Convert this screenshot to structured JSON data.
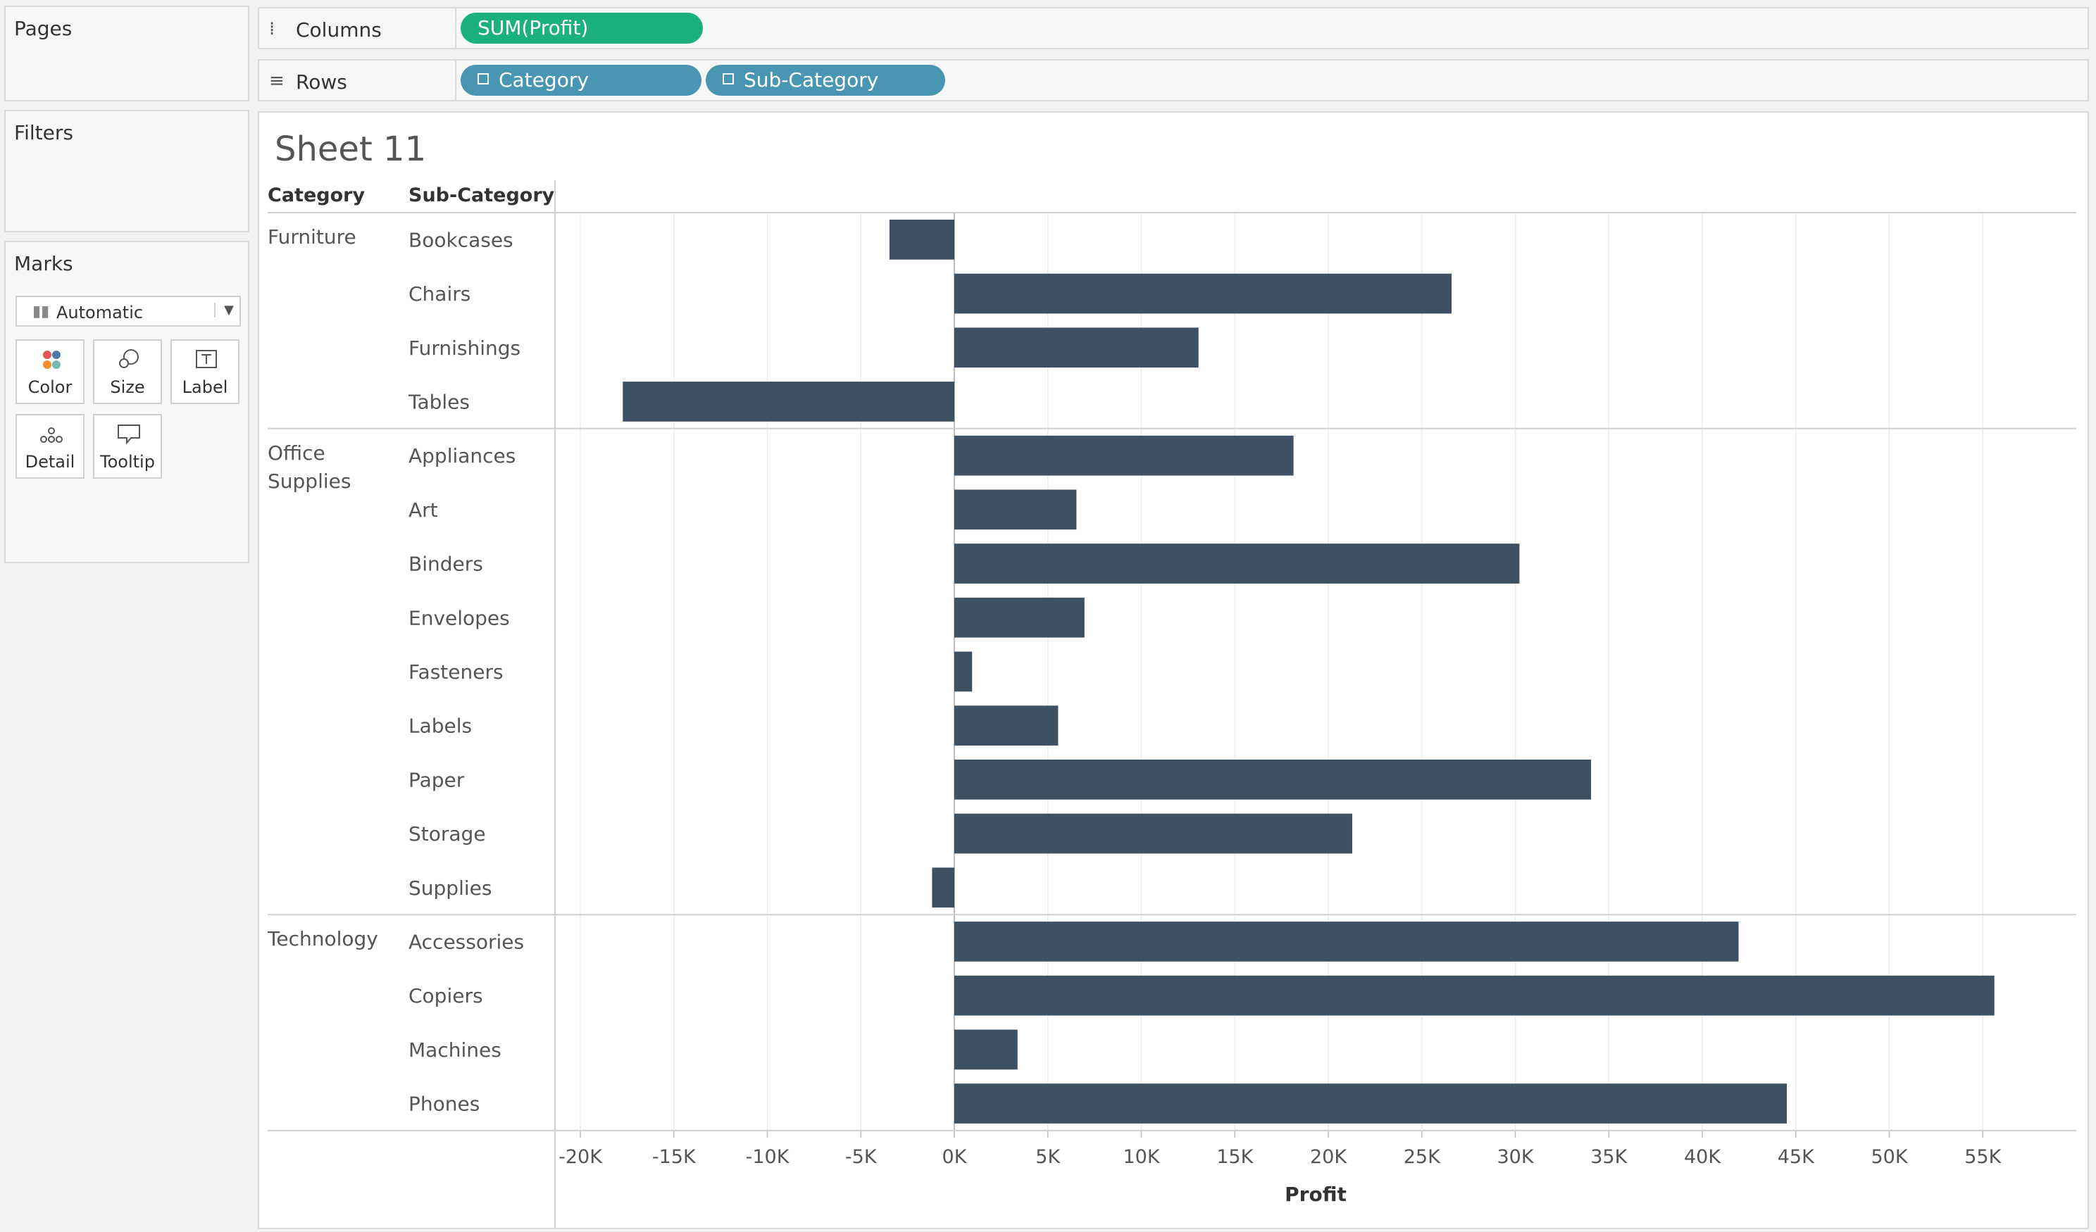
{
  "cards": {
    "pages": "Pages",
    "filters": "Filters",
    "marks": "Marks",
    "mark_type": "Automatic",
    "buttons": {
      "color": "Color",
      "size": "Size",
      "label": "Label",
      "detail": "Detail",
      "tooltip": "Tooltip"
    }
  },
  "shelves": {
    "columns": {
      "label": "Columns",
      "pills": [
        "SUM(Profit)"
      ]
    },
    "rows": {
      "label": "Rows",
      "pills": [
        "Category",
        "Sub-Category"
      ]
    }
  },
  "sheet": {
    "title": "Sheet 11",
    "header_category": "Category",
    "header_subcategory": "Sub-Category"
  },
  "colors": {
    "bar": "#3d5163",
    "columns_pill": "#1bb080",
    "rows_pill": "#4996b2"
  },
  "chart_data": {
    "type": "bar",
    "orientation": "horizontal",
    "xlabel": "Profit",
    "xlim": [
      -21500,
      60000
    ],
    "xticks": [
      -20000,
      -15000,
      -10000,
      -5000,
      0,
      5000,
      10000,
      15000,
      20000,
      25000,
      30000,
      35000,
      40000,
      45000,
      50000,
      55000
    ],
    "xtick_labels": [
      "-20K",
      "-15K",
      "-10K",
      "-5K",
      "0K",
      "5K",
      "10K",
      "15K",
      "20K",
      "25K",
      "30K",
      "35K",
      "40K",
      "45K",
      "50K",
      "55K"
    ],
    "grid": "vertical",
    "groups": [
      {
        "category": "Furniture",
        "rows": [
          {
            "sub": "Bookcases",
            "value": -3470
          },
          {
            "sub": "Chairs",
            "value": 26590
          },
          {
            "sub": "Furnishings",
            "value": 13060
          },
          {
            "sub": "Tables",
            "value": -17730
          }
        ]
      },
      {
        "category": "Office Supplies",
        "rows": [
          {
            "sub": "Appliances",
            "value": 18140
          },
          {
            "sub": "Art",
            "value": 6530
          },
          {
            "sub": "Binders",
            "value": 30220
          },
          {
            "sub": "Envelopes",
            "value": 6960
          },
          {
            "sub": "Fasteners",
            "value": 950
          },
          {
            "sub": "Labels",
            "value": 5550
          },
          {
            "sub": "Paper",
            "value": 34050
          },
          {
            "sub": "Storage",
            "value": 21280
          },
          {
            "sub": "Supplies",
            "value": -1190
          }
        ]
      },
      {
        "category": "Technology",
        "rows": [
          {
            "sub": "Accessories",
            "value": 41940
          },
          {
            "sub": "Copiers",
            "value": 55620
          },
          {
            "sub": "Machines",
            "value": 3380
          },
          {
            "sub": "Phones",
            "value": 44520
          }
        ]
      }
    ]
  }
}
